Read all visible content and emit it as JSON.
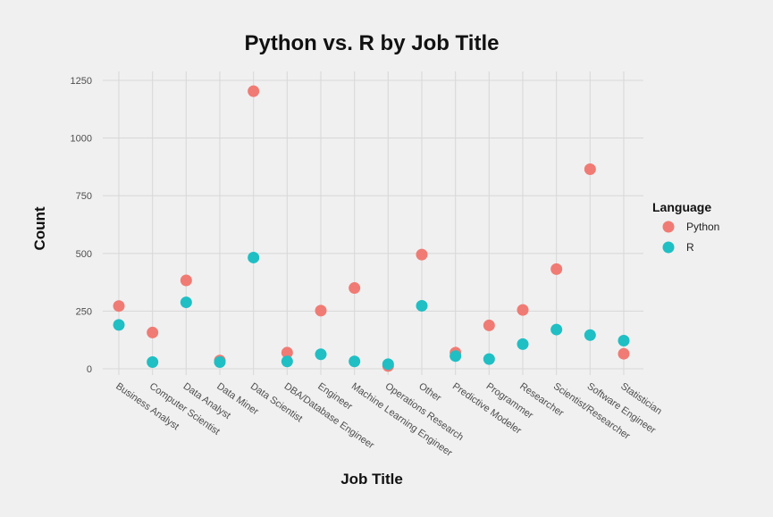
{
  "chart_data": {
    "type": "scatter",
    "title": "Python vs. R by Job Title",
    "xlabel": "Job Title",
    "ylabel": "Count",
    "ylim": [
      0,
      1300
    ],
    "yticks": [
      0,
      250,
      500,
      750,
      1000,
      1250
    ],
    "grid": true,
    "legend": {
      "title": "Language",
      "position": "right"
    },
    "categories": [
      "Business Analyst",
      "Computer Scientist",
      "Data Analyst",
      "Data Miner",
      "Data Scientist",
      "DBA/Database Engineer",
      "Engineer",
      "Machine Learning Engineer",
      "Operations Research",
      "Other",
      "Predictive Modeler",
      "Programmer",
      "Researcher",
      "Scientist/Researcher",
      "Software Engineer",
      "Statistician"
    ],
    "series": [
      {
        "name": "Python",
        "color": "#f07b74",
        "values": [
          272,
          157,
          383,
          36,
          1203,
          70,
          252,
          350,
          12,
          495,
          70,
          188,
          255,
          432,
          865,
          65
        ]
      },
      {
        "name": "R",
        "color": "#1fbfc4",
        "values": [
          190,
          29,
          288,
          29,
          482,
          32,
          63,
          32,
          20,
          273,
          55,
          42,
          107,
          170,
          146,
          122
        ]
      }
    ]
  }
}
